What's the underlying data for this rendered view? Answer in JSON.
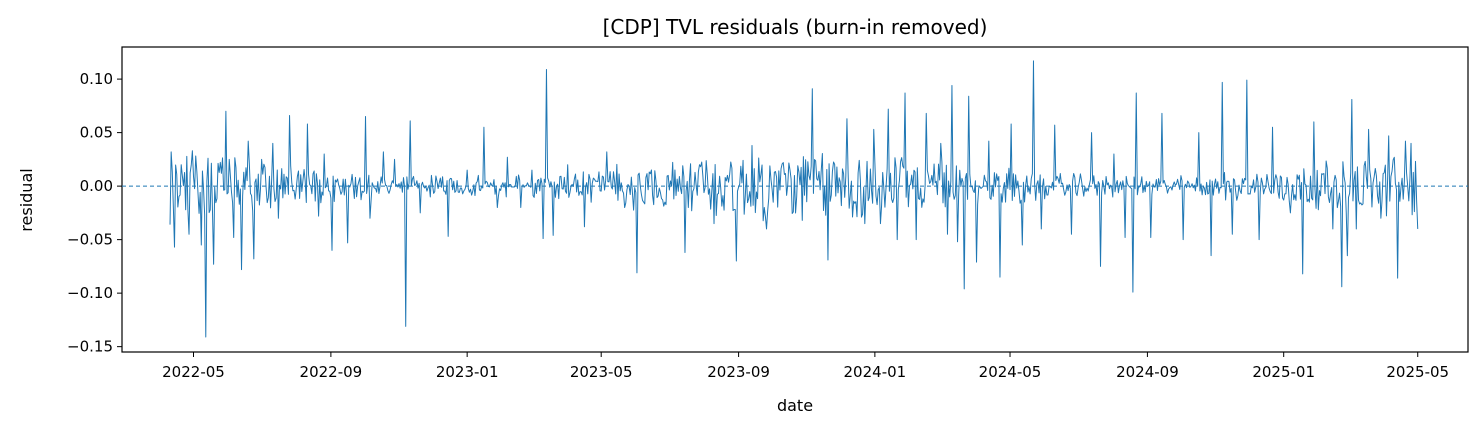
{
  "chart_data": {
    "type": "line",
    "title": "[CDP] TVL residuals (burn-in removed)",
    "xlabel": "date",
    "ylabel": "residual",
    "x_range": [
      "2022-04-10",
      "2025-05-01"
    ],
    "xlim": [
      "2022-02-26",
      "2025-06-15"
    ],
    "ylim": [
      -0.155,
      0.13
    ],
    "x_ticks": [
      "2022-05",
      "2022-09",
      "2023-01",
      "2023-05",
      "2023-09",
      "2024-01",
      "2024-05",
      "2024-09",
      "2025-01",
      "2025-05"
    ],
    "y_ticks": [
      0.1,
      0.05,
      0.0,
      -0.05,
      -0.1,
      -0.15
    ],
    "y_tick_labels": [
      "0.10",
      "0.05",
      "0.00",
      "−0.05",
      "−0.10",
      "−0.15"
    ],
    "reference_line": {
      "y": 0.0,
      "style": "dashed"
    },
    "grid": false,
    "line_color": "#1f77b4",
    "series": [
      {
        "points": [
          [
            "2022-04-10",
            -0.036
          ],
          [
            "2022-04-11",
            0.032
          ],
          [
            "2022-04-14",
            -0.057
          ],
          [
            "2022-04-20",
            0.02
          ],
          [
            "2022-04-27",
            -0.045
          ],
          [
            "2022-04-30",
            0.033
          ],
          [
            "2022-05-08",
            -0.055
          ],
          [
            "2022-05-12",
            -0.141
          ],
          [
            "2022-05-14",
            0.026
          ],
          [
            "2022-05-19",
            -0.073
          ],
          [
            "2022-05-30",
            0.07
          ],
          [
            "2022-06-06",
            -0.048
          ],
          [
            "2022-06-13",
            -0.078
          ],
          [
            "2022-06-19",
            0.042
          ],
          [
            "2022-06-24",
            -0.068
          ],
          [
            "2022-07-01",
            0.025
          ],
          [
            "2022-07-11",
            0.04
          ],
          [
            "2022-07-16",
            -0.03
          ],
          [
            "2022-07-26",
            0.066
          ],
          [
            "2022-08-06",
            -0.005
          ],
          [
            "2022-08-11",
            0.058
          ],
          [
            "2022-08-21",
            -0.028
          ],
          [
            "2022-08-26",
            0.03
          ],
          [
            "2022-09-02",
            -0.06
          ],
          [
            "2022-09-16",
            -0.053
          ],
          [
            "2022-10-02",
            0.065
          ],
          [
            "2022-10-06",
            -0.03
          ],
          [
            "2022-10-18",
            0.032
          ],
          [
            "2022-10-28",
            0.025
          ],
          [
            "2022-11-07",
            -0.131
          ],
          [
            "2022-11-11",
            0.061
          ],
          [
            "2022-11-20",
            -0.025
          ],
          [
            "2022-11-30",
            0.01
          ],
          [
            "2022-12-15",
            -0.047
          ],
          [
            "2023-01-01",
            0.015
          ],
          [
            "2023-01-11",
            0.01
          ],
          [
            "2023-01-16",
            0.055
          ],
          [
            "2023-01-28",
            -0.02
          ],
          [
            "2023-02-06",
            0.027
          ],
          [
            "2023-02-18",
            -0.02
          ],
          [
            "2023-02-28",
            0.015
          ],
          [
            "2023-03-10",
            -0.049
          ],
          [
            "2023-03-13",
            0.109
          ],
          [
            "2023-03-19",
            -0.046
          ],
          [
            "2023-04-01",
            0.02
          ],
          [
            "2023-04-16",
            -0.038
          ],
          [
            "2023-05-06",
            0.032
          ],
          [
            "2023-05-22",
            -0.02
          ],
          [
            "2023-06-02",
            -0.081
          ],
          [
            "2023-06-10",
            0.008
          ],
          [
            "2023-06-30",
            0.01
          ],
          [
            "2023-07-15",
            -0.062
          ],
          [
            "2023-07-28",
            0.02
          ],
          [
            "2023-08-10",
            -0.035
          ],
          [
            "2023-08-20",
            0.008
          ],
          [
            "2023-08-30",
            -0.07
          ],
          [
            "2023-09-13",
            0.038
          ],
          [
            "2023-09-26",
            -0.04
          ],
          [
            "2023-10-11",
            0.022
          ],
          [
            "2023-10-28",
            -0.032
          ],
          [
            "2023-11-06",
            0.091
          ],
          [
            "2023-11-20",
            -0.069
          ],
          [
            "2023-12-07",
            0.063
          ],
          [
            "2023-12-23",
            -0.035
          ],
          [
            "2023-12-31",
            0.053
          ],
          [
            "2024-01-06",
            -0.035
          ],
          [
            "2024-01-13",
            0.072
          ],
          [
            "2024-01-21",
            -0.05
          ],
          [
            "2024-01-28",
            0.087
          ],
          [
            "2024-02-07",
            -0.05
          ],
          [
            "2024-02-16",
            0.068
          ],
          [
            "2024-02-29",
            0.04
          ],
          [
            "2024-03-06",
            -0.045
          ],
          [
            "2024-03-10",
            0.094
          ],
          [
            "2024-03-15",
            -0.052
          ],
          [
            "2024-03-21",
            -0.096
          ],
          [
            "2024-03-25",
            0.084
          ],
          [
            "2024-04-01",
            -0.071
          ],
          [
            "2024-04-12",
            0.042
          ],
          [
            "2024-04-22",
            -0.085
          ],
          [
            "2024-05-02",
            0.058
          ],
          [
            "2024-05-12",
            -0.055
          ],
          [
            "2024-05-22",
            0.117
          ],
          [
            "2024-05-29",
            -0.04
          ],
          [
            "2024-06-10",
            0.057
          ],
          [
            "2024-06-25",
            -0.045
          ],
          [
            "2024-07-13",
            0.05
          ],
          [
            "2024-07-21",
            -0.075
          ],
          [
            "2024-08-02",
            0.03
          ],
          [
            "2024-08-12",
            -0.048
          ],
          [
            "2024-08-19",
            -0.099
          ],
          [
            "2024-08-22",
            0.087
          ],
          [
            "2024-09-04",
            -0.048
          ],
          [
            "2024-09-14",
            0.068
          ],
          [
            "2024-10-03",
            -0.05
          ],
          [
            "2024-10-17",
            0.05
          ],
          [
            "2024-10-28",
            -0.065
          ],
          [
            "2024-11-07",
            0.097
          ],
          [
            "2024-11-16",
            -0.045
          ],
          [
            "2024-11-29",
            0.099
          ],
          [
            "2024-12-10",
            -0.05
          ],
          [
            "2024-12-22",
            0.055
          ],
          [
            "2025-01-07",
            -0.025
          ],
          [
            "2025-01-18",
            -0.082
          ],
          [
            "2025-01-28",
            0.06
          ],
          [
            "2025-02-14",
            -0.04
          ],
          [
            "2025-02-22",
            -0.094
          ],
          [
            "2025-02-27",
            -0.065
          ],
          [
            "2025-03-03",
            0.081
          ],
          [
            "2025-03-07",
            -0.04
          ],
          [
            "2025-03-18",
            0.053
          ],
          [
            "2025-03-29",
            -0.03
          ],
          [
            "2025-04-05",
            0.047
          ],
          [
            "2025-04-13",
            -0.086
          ],
          [
            "2025-04-20",
            0.042
          ],
          [
            "2025-04-25",
            0.04
          ],
          [
            "2025-05-01",
            -0.04
          ]
        ]
      }
    ]
  }
}
